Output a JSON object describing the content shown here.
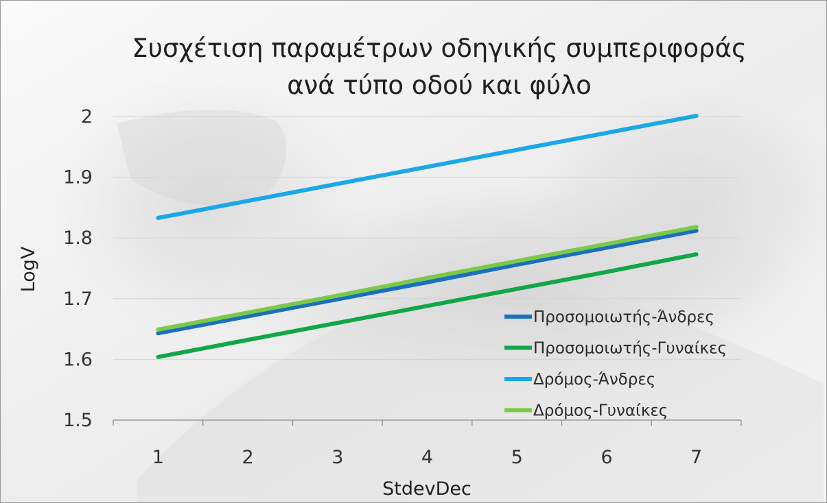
{
  "chart_data": {
    "type": "line",
    "title": [
      "Συσχέτιση παραμέτρων οδηγικής συμπεριφοράς",
      "ανά τύπο οδού και φύλο"
    ],
    "xlabel": "StdevDec",
    "ylabel": "LogV",
    "x": [
      1,
      2,
      3,
      4,
      5,
      6,
      7
    ],
    "xlim": [
      0.5,
      7.5
    ],
    "ylim": [
      1.5,
      2
    ],
    "yticks": [
      1.5,
      1.6,
      1.7,
      1.8,
      1.9,
      2
    ],
    "ytick_labels": [
      "1.5",
      "1.6",
      "1.7",
      "1.8",
      "1.9",
      "2"
    ],
    "grid": true,
    "legend_position": "right",
    "series": [
      {
        "name": "Προσομοιωτής-Άνδρες",
        "color": "#1a6fc0",
        "values": [
          1.643,
          1.671,
          1.699,
          1.727,
          1.756,
          1.784,
          1.812
        ]
      },
      {
        "name": "Προσομοιωτής-Γυναίκες",
        "color": "#12a64a",
        "values": [
          1.604,
          1.632,
          1.66,
          1.688,
          1.716,
          1.744,
          1.773
        ]
      },
      {
        "name": "Δρόμος-Άνδρες",
        "color": "#1aa8e8",
        "values": [
          1.833,
          1.861,
          1.889,
          1.917,
          1.945,
          1.973,
          2.001
        ]
      },
      {
        "name": "Δρόμος-Γυναίκες",
        "color": "#7cc94a",
        "values": [
          1.649,
          1.677,
          1.705,
          1.734,
          1.762,
          1.79,
          1.818
        ]
      }
    ]
  }
}
